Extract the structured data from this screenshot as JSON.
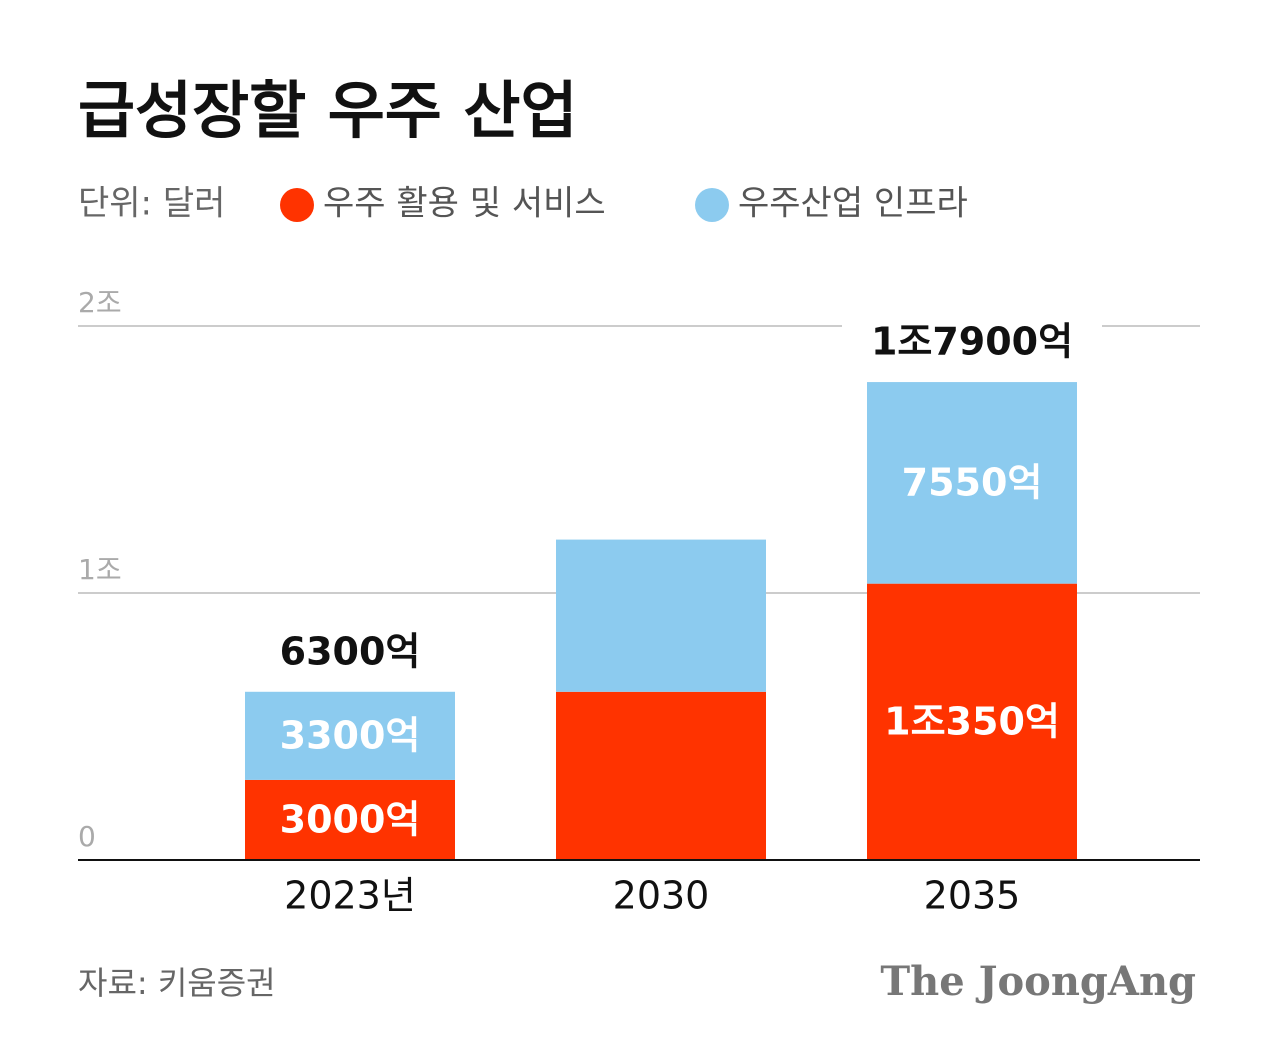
{
  "chart_data": {
    "type": "stacked_bar",
    "title": "급성장할 우주 산업",
    "unit": "단위: 달러",
    "categories": [
      "2023년",
      "2030",
      "2035"
    ],
    "series": [
      {
        "name": "우주 활용 및 서비스",
        "color": "#ff3300",
        "values": [
          3000,
          6300,
          10350
        ],
        "value_labels": [
          "3000억",
          null,
          "1조350억"
        ]
      },
      {
        "name": "우주산업 인프라",
        "color": "#8ccbef",
        "values": [
          3300,
          5700,
          7550
        ],
        "value_labels": [
          "3300억",
          null,
          "7550억"
        ]
      }
    ],
    "totals": {
      "values": [
        6300,
        null,
        17900
      ],
      "value_labels": [
        "6300억",
        null,
        "1조7900억"
      ]
    },
    "ylim": [
      0,
      20000
    ],
    "yticks": [
      0,
      {
        "value": 10000,
        "label": "1조"
      },
      {
        "value": 20000,
        "label": "2조"
      }
    ],
    "grid": true,
    "source": "자료: 키움증권",
    "brand": "The JoongAng"
  }
}
